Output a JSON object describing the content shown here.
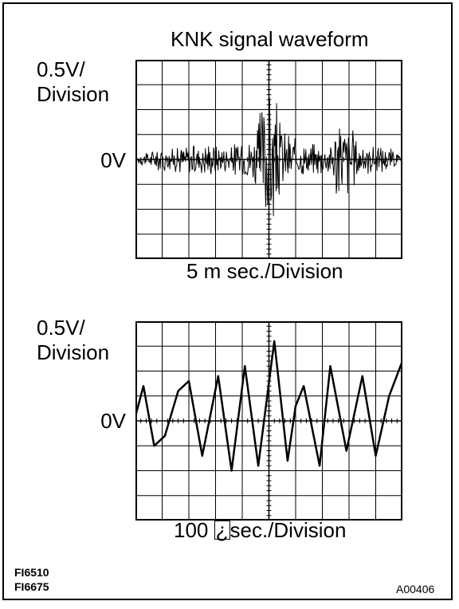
{
  "title": "KNK signal waveform",
  "scope_top": {
    "volts_per_division": "0.5V/",
    "volts_per_division_unit": "Division",
    "zero_label": "0V",
    "time_base": "5 m sec./Division"
  },
  "scope_bottom": {
    "volts_per_division": "0.5V/",
    "volts_per_division_unit": "Division",
    "zero_label": "0V",
    "time_base_prefix": "100 ",
    "time_base_symbol": "¿",
    "time_base_suffix": "sec./Division"
  },
  "figure_codes": [
    "FI6510",
    "FI6675"
  ],
  "reference_code": "A00406",
  "colors": {
    "ink": "#000000",
    "paper": "#ffffff"
  },
  "chart_data": [
    {
      "type": "line",
      "title": "KNK signal waveform",
      "ylabel": "0.5V/Division",
      "xlabel": "5 m sec./Division",
      "grid": true,
      "divisions_x": 10,
      "divisions_y": 8,
      "ylim": [
        -2,
        2
      ],
      "xlim": [
        0,
        50
      ],
      "series": [
        {
          "x": [
            0,
            2,
            4,
            6,
            8,
            9.5,
            11,
            12,
            13,
            14,
            16,
            18,
            20,
            22,
            24,
            26,
            28,
            30,
            31,
            32,
            34,
            36,
            38,
            40,
            42,
            44,
            46,
            48,
            50
          ],
          "y": [
            0.05,
            -0.15,
            0.2,
            -0.2,
            0.25,
            -0.3,
            0.35,
            -0.25,
            0.3,
            -0.35,
            0.3,
            -0.3,
            0.4,
            -0.45,
            1.2,
            -1.15,
            0.55,
            -0.4,
            0.35,
            -0.3,
            0.3,
            -0.3,
            0.85,
            -0.7,
            0.3,
            -0.25,
            0.25,
            -0.2,
            0.05
          ]
        }
      ]
    },
    {
      "type": "line",
      "ylabel": "0.5V/Division",
      "xlabel": "100 ¿sec./Division",
      "grid": true,
      "divisions_x": 10,
      "divisions_y": 8,
      "ylim": [
        -2,
        2
      ],
      "xlim": [
        0,
        1000
      ],
      "series": [
        {
          "x": [
            0,
            30,
            70,
            110,
            160,
            200,
            250,
            310,
            360,
            410,
            460,
            520,
            570,
            600,
            630,
            690,
            730,
            790,
            850,
            900,
            950,
            1000
          ],
          "y": [
            0.1,
            0.7,
            -0.5,
            -0.3,
            0.6,
            0.8,
            -0.7,
            0.9,
            -1.0,
            1.1,
            -0.9,
            1.6,
            -0.8,
            0.3,
            0.7,
            -0.9,
            1.1,
            -0.6,
            0.9,
            -0.7,
            0.5,
            1.2
          ]
        }
      ]
    }
  ]
}
